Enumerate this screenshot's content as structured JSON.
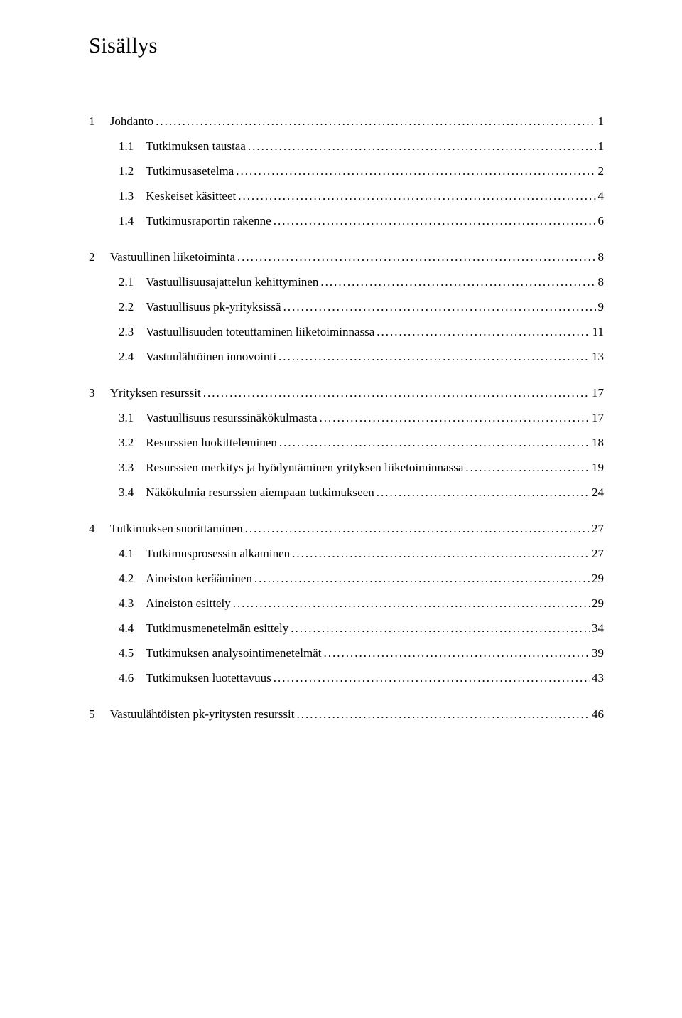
{
  "title": "Sisällys",
  "toc": [
    {
      "num": "1",
      "label": "Johdanto",
      "page": "1",
      "level": 1,
      "gap": "large"
    },
    {
      "num": "1.1",
      "label": "Tutkimuksen taustaa",
      "page": "1",
      "level": 2,
      "gap": "small"
    },
    {
      "num": "1.2",
      "label": "Tutkimusasetelma",
      "page": "2",
      "level": 2,
      "gap": "small"
    },
    {
      "num": "1.3",
      "label": "Keskeiset käsitteet",
      "page": "4",
      "level": 2,
      "gap": "small"
    },
    {
      "num": "1.4",
      "label": "Tutkimusraportin rakenne",
      "page": "6",
      "level": 2,
      "gap": "small"
    },
    {
      "num": "2",
      "label": "Vastuullinen liiketoiminta",
      "page": "8",
      "level": 1,
      "gap": "large"
    },
    {
      "num": "2.1",
      "label": "Vastuullisuusajattelun kehittyminen",
      "page": "8",
      "level": 2,
      "gap": "small"
    },
    {
      "num": "2.2",
      "label": "Vastuullisuus pk-yrityksissä",
      "page": "9",
      "level": 2,
      "gap": "small"
    },
    {
      "num": "2.3",
      "label": "Vastuullisuuden toteuttaminen liiketoiminnassa",
      "page": "11",
      "level": 2,
      "gap": "small"
    },
    {
      "num": "2.4",
      "label": "Vastuulähtöinen innovointi",
      "page": "13",
      "level": 2,
      "gap": "small"
    },
    {
      "num": "3",
      "label": "Yrityksen resurssit",
      "page": "17",
      "level": 1,
      "gap": "large"
    },
    {
      "num": "3.1",
      "label": "Vastuullisuus resurssinäkökulmasta",
      "page": "17",
      "level": 2,
      "gap": "small"
    },
    {
      "num": "3.2",
      "label": "Resurssien luokitteleminen",
      "page": "18",
      "level": 2,
      "gap": "small"
    },
    {
      "num": "3.3",
      "label": "Resurssien merkitys ja hyödyntäminen yrityksen liiketoiminnassa",
      "page": "19",
      "level": 2,
      "gap": "small"
    },
    {
      "num": "3.4",
      "label": "Näkökulmia resurssien aiempaan tutkimukseen",
      "page": "24",
      "level": 2,
      "gap": "small"
    },
    {
      "num": "4",
      "label": "Tutkimuksen suorittaminen",
      "page": "27",
      "level": 1,
      "gap": "large"
    },
    {
      "num": "4.1",
      "label": "Tutkimusprosessin alkaminen",
      "page": "27",
      "level": 2,
      "gap": "small"
    },
    {
      "num": "4.2",
      "label": "Aineiston kerääminen",
      "page": "29",
      "level": 2,
      "gap": "small"
    },
    {
      "num": "4.3",
      "label": "Aineiston esittely",
      "page": "29",
      "level": 2,
      "gap": "small"
    },
    {
      "num": "4.4",
      "label": "Tutkimusmenetelmän esittely",
      "page": "34",
      "level": 2,
      "gap": "small"
    },
    {
      "num": "4.5",
      "label": "Tutkimuksen analysointimenetelmät",
      "page": "39",
      "level": 2,
      "gap": "small"
    },
    {
      "num": "4.6",
      "label": "Tutkimuksen luotettavuus",
      "page": "43",
      "level": 2,
      "gap": "small"
    },
    {
      "num": "5",
      "label": "Vastuulähtöisten pk-yritysten resurssit",
      "page": "46",
      "level": 1,
      "gap": "large"
    }
  ],
  "style": {
    "dot_char": ".",
    "lvl1_num_pad": "     ",
    "lvl2_num_pad": "    "
  }
}
